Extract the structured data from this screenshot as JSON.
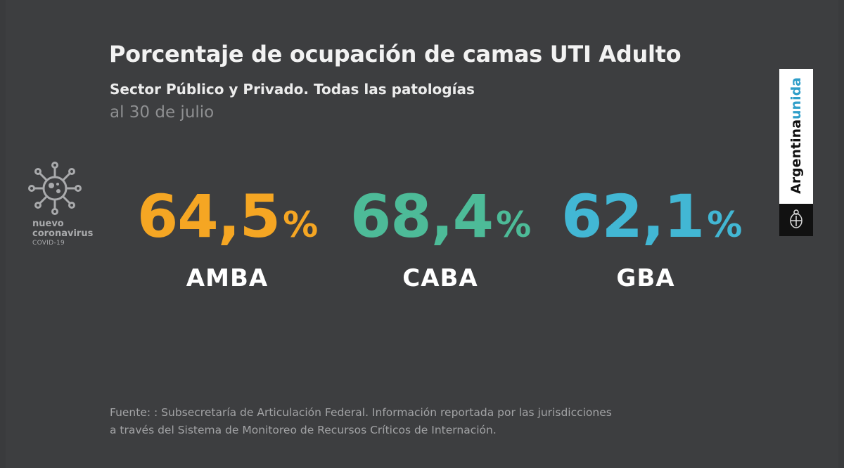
{
  "header": {
    "title": "Porcentaje de ocupación de camas UTI Adulto",
    "subtitle": "Sector Público y Privado. Todas las patologías",
    "date": "al 30 de julio"
  },
  "sidebar_logo": {
    "icon": "virus-icon",
    "line1": "nuevo",
    "line2": "coronavirus",
    "line3": "COVID-19"
  },
  "stats": [
    {
      "value": "64,5",
      "unit": "%",
      "label": "AMBA",
      "color": "#f5a623"
    },
    {
      "value": "68,4",
      "unit": "%",
      "label": "CABA",
      "color": "#4dbb98"
    },
    {
      "value": "62,1",
      "unit": "%",
      "label": "GBA",
      "color": "#42b7d4"
    }
  ],
  "brand": {
    "word1": "Argentina",
    "word2": "unida",
    "emblem": "coat-of-arms-icon"
  },
  "footer": {
    "line1": "Fuente: : Subsecretaría de Articulación Federal. Información reportada por las jurisdicciones",
    "line2": "a través del Sistema de Monitoreo de Recursos Críticos de Internación."
  }
}
